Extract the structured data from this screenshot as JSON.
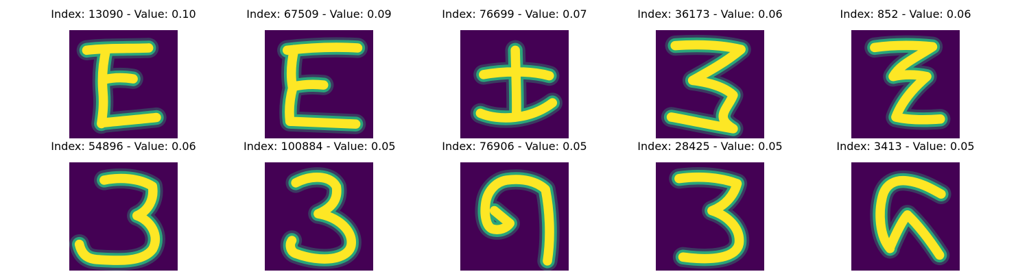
{
  "colors": {
    "background": "#440154",
    "edge": "#2aa57a",
    "stroke": "#fde725"
  },
  "panels": [
    {
      "title": "Index: 13090 - Value: 0.10",
      "depicts": "E"
    },
    {
      "title": "Index: 67509 - Value: 0.09",
      "depicts": "E"
    },
    {
      "title": "Index: 76699 - Value: 0.07",
      "depicts": "I"
    },
    {
      "title": "Index: 36173 - Value: 0.06",
      "depicts": "3"
    },
    {
      "title": "Index: 852 - Value: 0.06",
      "depicts": "Z"
    },
    {
      "title": "Index: 54896 - Value: 0.06",
      "depicts": "3"
    },
    {
      "title": "Index: 100884 - Value: 0.05",
      "depicts": "3"
    },
    {
      "title": "Index: 76906 - Value: 0.05",
      "depicts": "9"
    },
    {
      "title": "Index: 28425 - Value: 0.05",
      "depicts": "3"
    },
    {
      "title": "Index: 3413 - Value: 0.05",
      "depicts": "q"
    }
  ]
}
